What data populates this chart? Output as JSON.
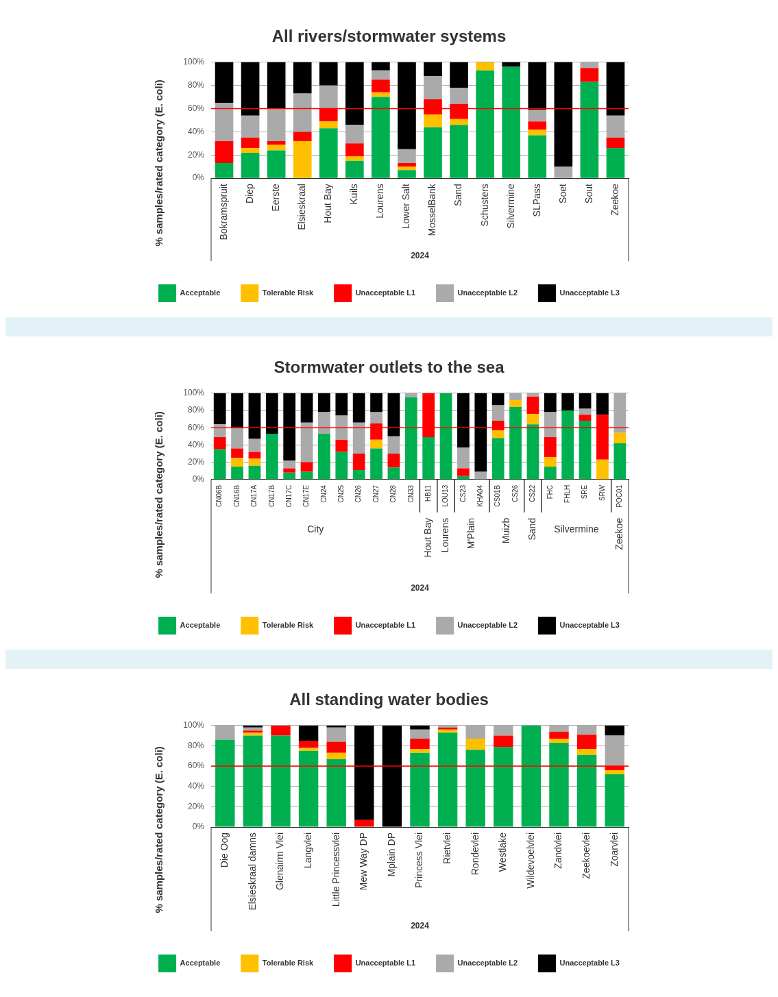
{
  "chart_data": [
    {
      "type": "bar",
      "stacked": true,
      "title": "All rivers/stormwater systems",
      "xlabel": "2024",
      "ylabel": "% samples/rated category (E. coli)",
      "categories": [
        "Bokramspruit",
        "Diep",
        "Eerste",
        "Elsieskraal",
        "Hout Bay",
        "Kuils",
        "Lourens",
        "Lower Salt",
        "MosselBank",
        "Sand",
        "Schusters",
        "Silvermine",
        "SLPass",
        "Soet",
        "Sout",
        "Zeekoe"
      ],
      "series": [
        {
          "name": "Acceptable",
          "color": "#00b050",
          "values": [
            13,
            22,
            24,
            0,
            43,
            15,
            70,
            7,
            44,
            46,
            93,
            96,
            37,
            0,
            83,
            26
          ]
        },
        {
          "name": "Tolerable Risk",
          "color": "#ffc000",
          "values": [
            0,
            4,
            5,
            32,
            6,
            4,
            4,
            3,
            11,
            5,
            7,
            0,
            5,
            0,
            0,
            0
          ]
        },
        {
          "name": "Unacceptable L1",
          "color": "#ff0000",
          "values": [
            19,
            9,
            3,
            8,
            11,
            11,
            11,
            3,
            13,
            13,
            0,
            0,
            7,
            0,
            12,
            9
          ]
        },
        {
          "name": "Unacceptable L2",
          "color": "#aaaaaa",
          "values": [
            33,
            19,
            28,
            33,
            20,
            16,
            8,
            12,
            20,
            14,
            0,
            0,
            10,
            10,
            5,
            19
          ]
        },
        {
          "name": "Unacceptable L3",
          "color": "#000000",
          "values": [
            35,
            46,
            40,
            27,
            20,
            54,
            7,
            75,
            12,
            22,
            0,
            4,
            41,
            90,
            0,
            46
          ]
        }
      ],
      "ylim": [
        0,
        100
      ],
      "yticks": [
        {
          "value": 0,
          "label": "0%"
        },
        {
          "value": 20,
          "label": "20%"
        },
        {
          "value": 40,
          "label": "40%"
        },
        {
          "value": 60,
          "label": "60%"
        },
        {
          "value": 80,
          "label": "80%"
        },
        {
          "value": 100,
          "label": "100%"
        }
      ],
      "grid": "y",
      "legend": "bottom",
      "ref_lines": [
        {
          "axis": "y",
          "value": 60,
          "color": "#ff0000"
        }
      ]
    },
    {
      "type": "bar",
      "stacked": true,
      "title": "Stormwater outlets to the sea",
      "xlabel": "2024",
      "ylabel": "% samples/rated category (E. coli)",
      "categories": [
        "CN06B",
        "CN16B",
        "CN17A",
        "CN17B",
        "CN17C",
        "CN17E",
        "CN24",
        "CN25",
        "CN26",
        "CN27",
        "CN28",
        "CN33",
        "HB11",
        "LOU13",
        "CS23",
        "KHA04",
        "CS01B",
        "CS26",
        "CS22",
        "FHC",
        "FHLH",
        "SRE",
        "SRW",
        "POC01"
      ],
      "series": [
        {
          "name": "Acceptable",
          "color": "#00b050",
          "values": [
            35,
            15,
            16,
            53,
            8,
            9,
            53,
            32,
            11,
            36,
            14,
            95,
            49,
            100,
            4,
            0,
            48,
            84,
            64,
            15,
            80,
            68,
            0,
            42
          ]
        },
        {
          "name": "Tolerable Risk",
          "color": "#ffc000",
          "values": [
            0,
            10,
            8,
            0,
            0,
            0,
            0,
            0,
            0,
            10,
            0,
            0,
            0,
            0,
            0,
            0,
            9,
            8,
            12,
            11,
            0,
            0,
            23,
            12
          ]
        },
        {
          "name": "Unacceptable L1",
          "color": "#ff0000",
          "values": [
            14,
            11,
            8,
            0,
            5,
            11,
            0,
            14,
            19,
            19,
            16,
            0,
            51,
            0,
            9,
            0,
            11,
            0,
            20,
            23,
            0,
            7,
            52,
            0
          ]
        },
        {
          "name": "Unacceptable L2",
          "color": "#aaaaaa",
          "values": [
            15,
            24,
            15,
            0,
            9,
            46,
            25,
            28,
            36,
            13,
            20,
            5,
            0,
            0,
            24,
            9,
            18,
            8,
            4,
            29,
            0,
            7,
            0,
            46
          ]
        },
        {
          "name": "Unacceptable L3",
          "color": "#000000",
          "values": [
            36,
            40,
            53,
            47,
            78,
            34,
            22,
            26,
            34,
            22,
            50,
            0,
            0,
            0,
            63,
            91,
            14,
            0,
            0,
            22,
            20,
            18,
            25,
            0
          ]
        }
      ],
      "annotations": [
        "City",
        "Hout Bay",
        "Lourens",
        "M'Plain",
        "Muizb",
        "Sand",
        "Silvermine",
        "Zeekoe"
      ],
      "ylim": [
        0,
        100
      ],
      "yticks": [
        {
          "value": 0,
          "label": "0%"
        },
        {
          "value": 20,
          "label": "20%"
        },
        {
          "value": 40,
          "label": "40%"
        },
        {
          "value": 60,
          "label": "60%"
        },
        {
          "value": 80,
          "label": "80%"
        },
        {
          "value": 100,
          "label": "100%"
        }
      ],
      "grid": "y",
      "legend": "bottom",
      "ref_lines": [
        {
          "axis": "y",
          "value": 60,
          "color": "#ff0000"
        }
      ]
    },
    {
      "type": "bar",
      "stacked": true,
      "title": "All standing water bodies",
      "xlabel": "2024",
      "ylabel": "% samples/rated category (E. coli)",
      "categories": [
        "Die Oog",
        "Elsieskraal damns",
        "Glenairm Vlei",
        "Langvlei",
        "Little Princessvlei",
        "Mew Way DP",
        "Mplain DP",
        "Princess Vlei",
        "Rietvlei",
        "Rondevlei",
        "Westlake",
        "Wildevoelvlei",
        "Zandvlei",
        "Zeekoevlei",
        "Zoarvlei"
      ],
      "series": [
        {
          "name": "Acceptable",
          "color": "#00b050",
          "values": [
            86,
            90,
            90,
            75,
            67,
            0,
            0,
            73,
            93,
            76,
            79,
            100,
            83,
            71,
            52
          ]
        },
        {
          "name": "Tolerable Risk",
          "color": "#ffc000",
          "values": [
            0,
            3,
            0,
            3,
            6,
            0,
            0,
            4,
            3,
            11,
            0,
            0,
            4,
            6,
            4
          ]
        },
        {
          "name": "Unacceptable L1",
          "color": "#ff0000",
          "values": [
            0,
            2,
            10,
            7,
            11,
            7,
            0,
            10,
            2,
            0,
            11,
            0,
            7,
            14,
            4
          ]
        },
        {
          "name": "Unacceptable L2",
          "color": "#aaaaaa",
          "values": [
            14,
            3,
            0,
            0,
            14,
            0,
            0,
            9,
            2,
            13,
            10,
            0,
            6,
            9,
            30
          ]
        },
        {
          "name": "Unacceptable L3",
          "color": "#000000",
          "values": [
            0,
            2,
            0,
            15,
            2,
            93,
            100,
            4,
            0,
            0,
            0,
            0,
            0,
            0,
            10
          ]
        }
      ],
      "ylim": [
        0,
        100
      ],
      "yticks": [
        {
          "value": 0,
          "label": "0%"
        },
        {
          "value": 20,
          "label": "20%"
        },
        {
          "value": 40,
          "label": "40%"
        },
        {
          "value": 60,
          "label": "60%"
        },
        {
          "value": 80,
          "label": "80%"
        },
        {
          "value": 100,
          "label": "100%"
        }
      ],
      "grid": "y",
      "legend": "bottom",
      "ref_lines": [
        {
          "axis": "y",
          "value": 60,
          "color": "#ff0000"
        }
      ]
    }
  ]
}
